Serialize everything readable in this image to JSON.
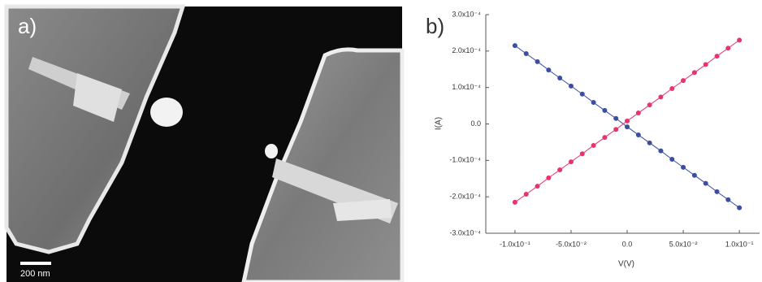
{
  "image_panel": {
    "label": "a)",
    "scale_bar": "200 nm"
  },
  "chart_data": {
    "type": "line",
    "panel_label": "b)",
    "x_label": "V(V)",
    "y_label": "I(A)",
    "x": [
      -0.1,
      -0.09,
      -0.08,
      -0.07,
      -0.06,
      -0.05,
      -0.04,
      -0.03,
      -0.02,
      -0.01,
      0,
      0.01,
      0.02,
      0.03,
      0.04,
      0.05,
      0.06,
      0.07,
      0.08,
      0.09,
      0.1
    ],
    "series": [
      {
        "color": "#3a4ea3",
        "values": [
          0.000215,
          0.000193,
          0.000171,
          0.000148,
          0.000126,
          0.000104,
          8.2e-05,
          5.9e-05,
          3.7e-05,
          1.5e-05,
          -8e-06,
          -3e-05,
          -5.2e-05,
          -7.4e-05,
          -9.7e-05,
          -0.000119,
          -0.000141,
          -0.000163,
          -0.000186,
          -0.000208,
          -0.00023
        ]
      },
      {
        "color": "#e8336e",
        "values": [
          -0.000215,
          -0.000193,
          -0.000171,
          -0.000148,
          -0.000126,
          -0.000104,
          -8.2e-05,
          -5.9e-05,
          -3.7e-05,
          -1.5e-05,
          8e-06,
          3e-05,
          5.2e-05,
          7.4e-05,
          9.7e-05,
          0.000119,
          0.000141,
          0.000163,
          0.000186,
          0.000208,
          0.00023
        ]
      }
    ],
    "xlim": [
      -0.126,
      0.118
    ],
    "xticks": [
      {
        "value": -0.1,
        "label": "-1.0x10⁻¹"
      },
      {
        "value": -0.05,
        "label": "-5.0x10⁻²"
      },
      {
        "value": 0,
        "label": "0.0"
      },
      {
        "value": 0.05,
        "label": "5.0x10⁻²"
      },
      {
        "value": 0.1,
        "label": "1.0x10⁻¹"
      }
    ],
    "ylim": [
      -0.0003,
      0.0003
    ],
    "yticks": [
      {
        "value": -0.0003,
        "label": "-3.0x10⁻⁴"
      },
      {
        "value": -0.0002,
        "label": "-2.0x10⁻⁴"
      },
      {
        "value": -0.0001,
        "label": "-1.0x10⁻⁴"
      },
      {
        "value": 0,
        "label": "0.0"
      },
      {
        "value": 0.0001,
        "label": "1.0x10⁻⁴"
      },
      {
        "value": 0.0002,
        "label": "2.0x10⁻⁴"
      },
      {
        "value": 0.0003,
        "label": "3.0x10⁻⁴"
      }
    ]
  }
}
